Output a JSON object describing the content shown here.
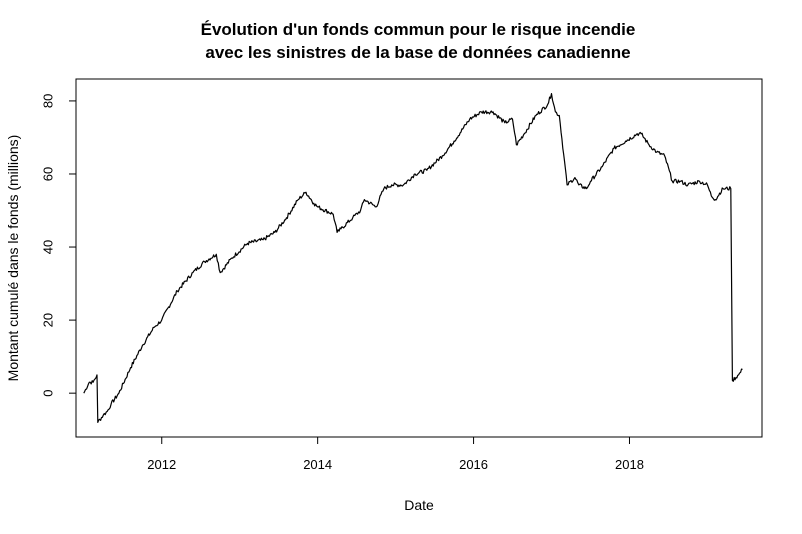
{
  "chart_data": {
    "type": "line",
    "title_line1": "Évolution d'un fonds commun pour le risque incendie",
    "title_line2": "avec les sinistres de la base de données canadienne",
    "xlabel": "Date",
    "ylabel": "Montant cumulé dans le fonds (millions)",
    "xlim": [
      2010.9,
      2019.7
    ],
    "ylim": [
      -12,
      86
    ],
    "x_ticks": [
      2012,
      2014,
      2016,
      2018
    ],
    "x_tick_labels": [
      "2012",
      "2014",
      "2016",
      "2018"
    ],
    "y_ticks": [
      0,
      20,
      40,
      60,
      80
    ],
    "y_tick_labels": [
      "0",
      "20",
      "40",
      "60",
      "80"
    ],
    "grid": false,
    "legend": "none",
    "line_color": "#000000",
    "series": [
      {
        "x": [
          2011.0,
          2011.07,
          2011.12,
          2011.17,
          2011.18,
          2011.25,
          2011.3,
          2011.35,
          2011.45,
          2011.6,
          2011.75,
          2011.9,
          2012.0,
          2012.2,
          2012.4,
          2012.55,
          2012.7,
          2012.75,
          2012.9,
          2013.1,
          2013.3,
          2013.45,
          2013.6,
          2013.75,
          2013.85,
          2013.95,
          2014.0,
          2014.2,
          2014.25,
          2014.3,
          2014.45,
          2014.55,
          2014.6,
          2014.75,
          2014.85,
          2014.95,
          2015.1,
          2015.25,
          2015.4,
          2015.6,
          2015.75,
          2015.95,
          2016.1,
          2016.25,
          2016.4,
          2016.5,
          2016.55,
          2016.65,
          2016.8,
          2016.95,
          2017.0,
          2017.05,
          2017.1,
          2017.2,
          2017.3,
          2017.35,
          2017.45,
          2017.5,
          2017.65,
          2017.8,
          2017.95,
          2018.1,
          2018.15,
          2018.25,
          2018.35,
          2018.45,
          2018.55,
          2018.65,
          2018.75,
          2018.9,
          2019.0,
          2019.05,
          2019.1,
          2019.2,
          2019.3,
          2019.32,
          2019.4,
          2019.45
        ],
        "y": [
          0.0,
          3.0,
          3.0,
          5.0,
          -8.0,
          -6.0,
          -5.0,
          -3.0,
          0.0,
          7.0,
          13.0,
          18.0,
          20.0,
          28.0,
          33.0,
          36.0,
          38.0,
          33.0,
          37.0,
          41.0,
          42.0,
          44.0,
          48.0,
          53.0,
          55.0,
          52.0,
          51.0,
          49.0,
          44.0,
          45.0,
          48.0,
          50.0,
          53.0,
          51.0,
          56.0,
          57.0,
          57.0,
          60.0,
          61.0,
          65.0,
          69.0,
          75.0,
          77.0,
          77.0,
          74.0,
          75.0,
          68.0,
          71.0,
          76.0,
          79.0,
          82.0,
          77.0,
          76.0,
          57.0,
          59.0,
          57.0,
          56.0,
          58.0,
          62.0,
          67.0,
          69.0,
          71.0,
          71.0,
          68.0,
          66.0,
          65.0,
          58.0,
          58.0,
          57.0,
          58.0,
          57.0,
          54.0,
          53.0,
          56.0,
          56.0,
          3.5,
          5.0,
          6.5
        ]
      }
    ]
  }
}
